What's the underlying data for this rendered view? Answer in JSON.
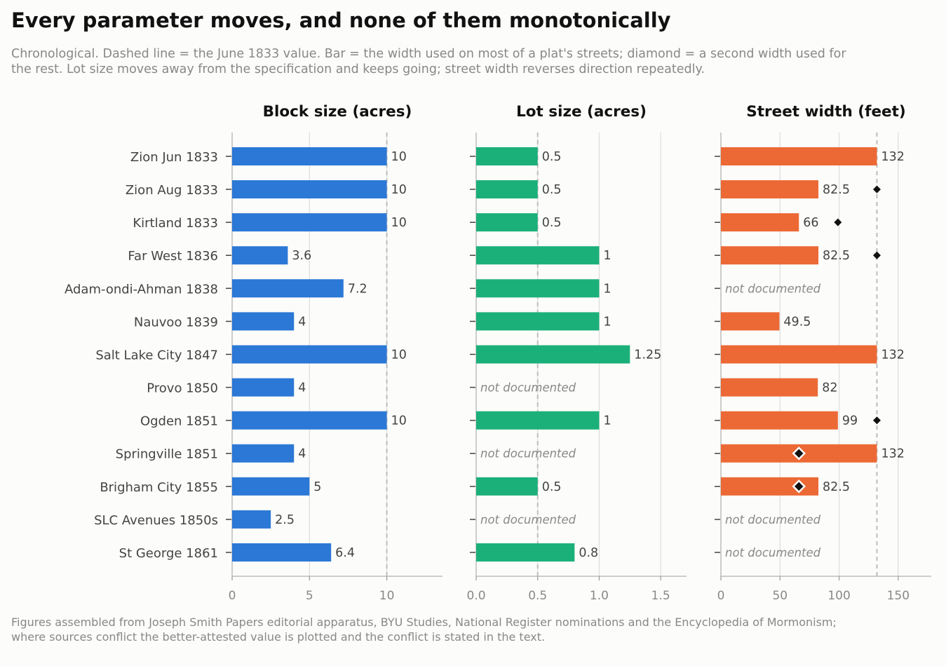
{
  "title": "Every parameter moves, and none of them monotonically",
  "subtitle_lines": [
    "Chronological. Dashed line = the June 1833 value. Bar = the width used on most of a plat's streets; diamond = a second width used for",
    "the rest. Lot size moves away from the specification and keeps going; street width reverses direction repeatedly."
  ],
  "footnote_lines": [
    "Figures assembled from Joseph Smith Papers editorial apparatus, BYU Studies, National Register nominations and the Encyclopedia of Mormonism;",
    "where sources conflict the better-attested value is plotted and the conflict is stated in the text."
  ],
  "missing_label": "not documented",
  "chart_data": {
    "type": "bar",
    "orientation": "horizontal",
    "categories": [
      "Zion Jun 1833",
      "Zion Aug 1833",
      "Kirtland 1833",
      "Far West 1836",
      "Adam-ondi-Ahman 1838",
      "Nauvoo 1839",
      "Salt Lake City 1847",
      "Provo 1850",
      "Ogden 1851",
      "Springville 1851",
      "Brigham City 1855",
      "SLC Avenues 1850s",
      "St George 1861"
    ],
    "panels": [
      {
        "title": "Block size (acres)",
        "color": "#2b78d6",
        "values": [
          10,
          10,
          10,
          3.6,
          7.2,
          4,
          10,
          4,
          10,
          4,
          5,
          2.5,
          6.4
        ],
        "value_labels": [
          "10",
          "10",
          "10",
          "3.6",
          "7.2",
          "4",
          "10",
          "4",
          "10",
          "4",
          "5",
          "2.5",
          "6.4"
        ],
        "reference": 10,
        "xlim": [
          0,
          13.6
        ],
        "ticks": [
          0,
          5,
          10
        ],
        "tick_labels": [
          "0",
          "5",
          "10"
        ]
      },
      {
        "title": "Lot size (acres)",
        "color": "#1bb07a",
        "values": [
          0.5,
          0.5,
          0.5,
          1,
          1,
          1,
          1.25,
          null,
          1,
          null,
          0.5,
          null,
          0.8
        ],
        "value_labels": [
          "0.5",
          "0.5",
          "0.5",
          "1",
          "1",
          "1",
          "1.25",
          "",
          "1",
          "",
          "0.5",
          "",
          "0.8"
        ],
        "reference": 0.5,
        "xlim": [
          0,
          1.71
        ],
        "ticks": [
          0,
          0.5,
          1,
          1.5
        ],
        "tick_labels": [
          "0.0",
          "0.5",
          "1.0",
          "1.5"
        ]
      },
      {
        "title": "Street width (feet)",
        "color": "#ec6935",
        "values": [
          132,
          82.5,
          66,
          82.5,
          null,
          49.5,
          132,
          82,
          99,
          132,
          82.5,
          null,
          null
        ],
        "value_labels": [
          "132",
          "82.5",
          "66",
          "82.5",
          "",
          "49.5",
          "132",
          "82",
          "99",
          "132",
          "82.5",
          "",
          ""
        ],
        "secondary": [
          null,
          132,
          99,
          132,
          null,
          null,
          null,
          null,
          132,
          66,
          66,
          null,
          null
        ],
        "reference": 132,
        "xlim": [
          0,
          178
        ],
        "ticks": [
          0,
          50,
          100,
          150
        ],
        "tick_labels": [
          "0",
          "50",
          "100",
          "150"
        ]
      }
    ]
  }
}
